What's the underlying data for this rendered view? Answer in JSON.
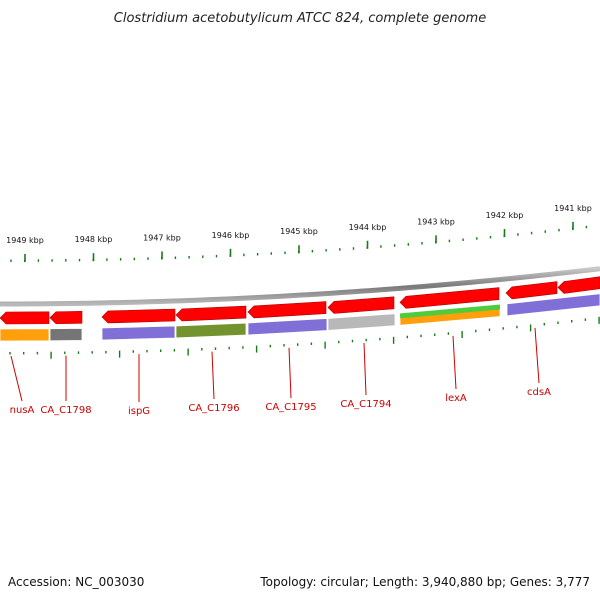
{
  "title": "Clostridium acetobutylicum ATCC 824, complete genome",
  "footer": {
    "accession": "Accession: NC_003030",
    "summary": "Topology: circular; Length: 3,940,880 bp; Genes: 3,777"
  },
  "colors": {
    "backbone": "#8c8c8c",
    "cds_arrow": "#ff0000",
    "major_tick": "#1a7a1a",
    "gene_label": "#d00000",
    "leader_line": "#d00000"
  },
  "kbp_ticks": [
    "1949 kbp",
    "1948 kbp",
    "1947 kbp",
    "1946 kbp",
    "1945 kbp",
    "1944 kbp",
    "1943 kbp",
    "1942 kbp",
    "1941 kbp"
  ],
  "genes": [
    {
      "label": "nusA",
      "color": "#ff9a00"
    },
    {
      "label": "CA_C1798",
      "color": "#6e6e6e"
    },
    {
      "label": "ispG",
      "color": "#7b68d6"
    },
    {
      "label": "CA_C1796",
      "color": "#6b8e23"
    },
    {
      "label": "CA_C1795",
      "color": "#7b68d6"
    },
    {
      "label": "CA_C1794",
      "color": "#b5b5b5"
    },
    {
      "label": "lexA",
      "color": "#ff9a00"
    },
    {
      "label": "cdsA",
      "color": "#7b68d6"
    }
  ]
}
